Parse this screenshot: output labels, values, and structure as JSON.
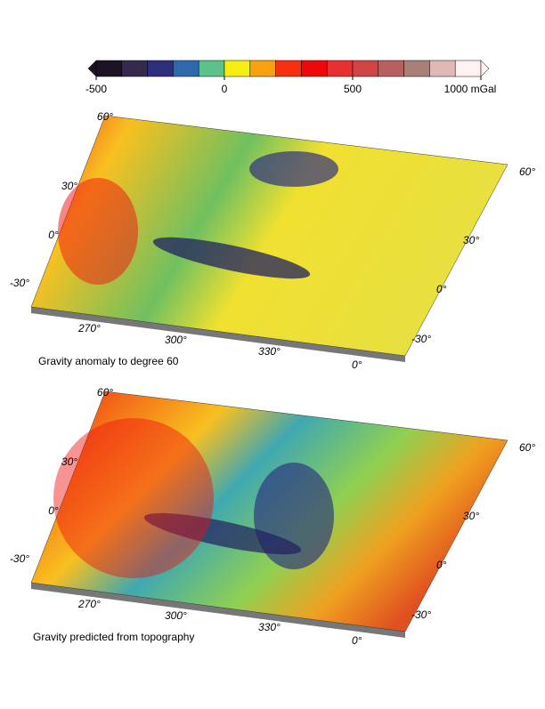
{
  "colorbar": {
    "boundaries": [
      -500,
      -400,
      -300,
      -200,
      -100,
      0,
      100,
      200,
      300,
      400,
      500,
      600,
      700,
      800,
      900,
      1000
    ],
    "colors": [
      "#1c1424",
      "#332a4c",
      "#2d2f7c",
      "#2e69ae",
      "#5cc28a",
      "#f6ee10",
      "#f8a010",
      "#f83010",
      "#f00808",
      "#e83030",
      "#d04444",
      "#b86060",
      "#a88078",
      "#e0b8b8",
      "#fff2f2"
    ],
    "ticks": [
      -500,
      0,
      500,
      {
        "value": 1000,
        "label": "1000 mGal"
      }
    ]
  },
  "maps": [
    {
      "caption": "Gravity anomaly to degree 60",
      "left_labels": [
        "60°",
        "30°",
        "0°",
        "-30°"
      ],
      "bottom_labels": [
        "270°",
        "300°",
        "330°",
        "0°"
      ],
      "right_labels": [
        "60°",
        "30°",
        "0°",
        "-30°"
      ]
    },
    {
      "caption": "Gravity predicted from topography",
      "left_labels": [
        "60°",
        "30°",
        "0°",
        "-30°"
      ],
      "bottom_labels": [
        "270°",
        "300°",
        "330°",
        "0°"
      ],
      "right_labels": [
        "60°",
        "30°",
        "0°",
        "-30°"
      ]
    }
  ]
}
